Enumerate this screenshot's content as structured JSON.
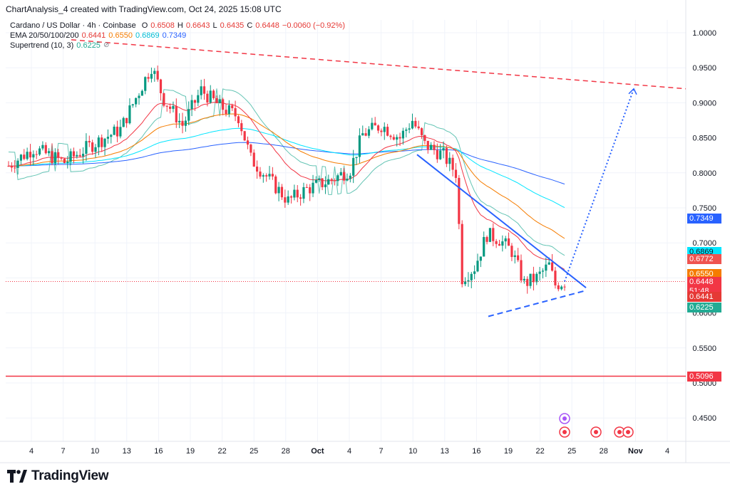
{
  "header": {
    "created_line": "ChartAnalysis_4 created with TradingView.com, Oct 24, 2025 15:08 UTC"
  },
  "legend": {
    "symbol": "Cardano / US Dollar · 4h · Coinbase",
    "ohlc": {
      "o_label": "O",
      "o": "0.6508",
      "h_label": "H",
      "h": "0.6643",
      "l_label": "L",
      "l": "0.6435",
      "c_label": "C",
      "c": "0.6448",
      "change": "−0.0060 (−0.92%)"
    },
    "ema_label": "EMA 20/50/100/200",
    "ema": {
      "e20": "0.6441",
      "e50": "0.6550",
      "e100": "0.6869",
      "e200": "0.7349"
    },
    "supertrend_label": "Supertrend (10, 3)",
    "supertrend": "0.6225",
    "eye_icon": "⊘"
  },
  "price_axis": {
    "ticks": [
      "1.0000",
      "0.9500",
      "0.9000",
      "0.8500",
      "0.8000",
      "0.7500",
      "0.7000",
      "0.6500",
      "0.6000",
      "0.5500",
      "0.5000",
      "0.4500"
    ],
    "tags": [
      {
        "text": "0.7349",
        "color": "#2962ff"
      },
      {
        "text": "0.6869",
        "color": "#00e5ff"
      },
      {
        "text": "0.6772",
        "color": "#ef5350"
      },
      {
        "text": "0.6550",
        "color": "#f57c00"
      },
      {
        "text": "0.6448",
        "color": "#f23645"
      },
      {
        "text": "51:48",
        "color": "#f23645"
      },
      {
        "text": "0.6441",
        "color": "#e53935"
      },
      {
        "text": "0.6225",
        "color": "#22ab94"
      },
      {
        "text": "0.5096",
        "color": "#f23645"
      }
    ]
  },
  "time_axis": {
    "labels": [
      "4",
      "7",
      "10",
      "13",
      "16",
      "19",
      "22",
      "25",
      "28",
      "Oct",
      "4",
      "7",
      "10",
      "13",
      "16",
      "19",
      "22",
      "25",
      "28",
      "Nov",
      "4"
    ]
  },
  "chart_data": {
    "type": "candlestick",
    "title": "Cardano / US Dollar · 4h · Coinbase",
    "ylim": [
      0.43,
      1.02
    ],
    "series": [
      {
        "name": "EMA 20",
        "color": "#f23645",
        "last": 0.6441
      },
      {
        "name": "EMA 50",
        "color": "#f57c00",
        "last": 0.655
      },
      {
        "name": "EMA 100",
        "color": "#00e5ff",
        "last": 0.6869
      },
      {
        "name": "EMA 200",
        "color": "#2962ff",
        "last": 0.7349
      },
      {
        "name": "Supertrend",
        "color": "#22ab94",
        "last": 0.6225
      }
    ],
    "last_close": 0.6448,
    "horizontal_support": 0.5096,
    "descending_resistance": {
      "from": 0.99,
      "to": 0.92
    },
    "triangle_upper": {
      "from": 0.826,
      "to": 0.636
    },
    "triangle_lower": {
      "from": 0.595,
      "to": 0.632
    },
    "projection_target": 0.92,
    "grid": true
  },
  "branding": {
    "name": "TradingView"
  },
  "colors": {
    "up": "#089981",
    "down": "#f23645"
  }
}
